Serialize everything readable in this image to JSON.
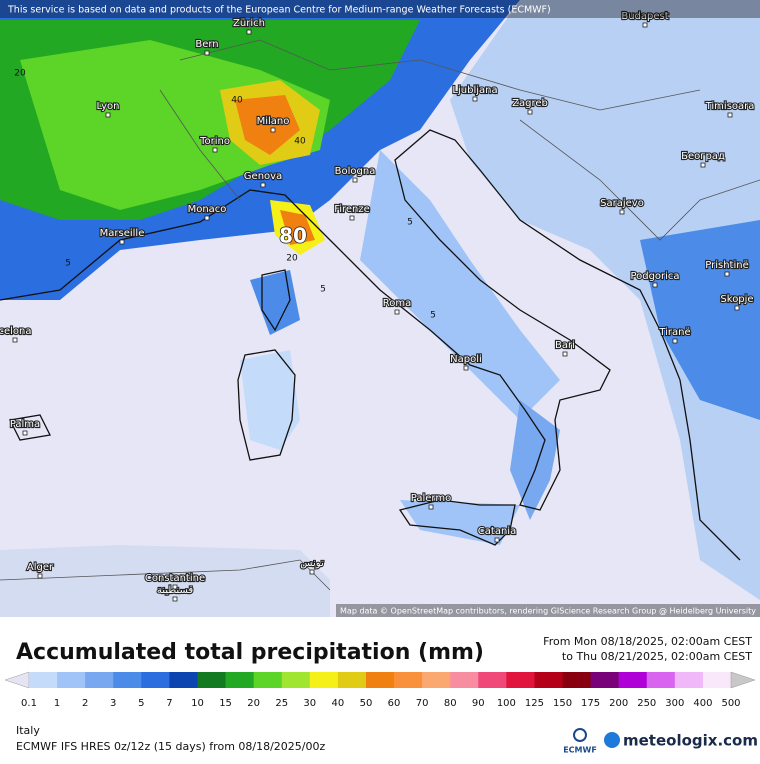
{
  "header": {
    "notice": "This service is based on data and products of the European Centre for Medium-range Weather Forecasts (ECMWF)"
  },
  "map": {
    "cities": [
      "Zürich",
      "Budapest",
      "Bern",
      "Lyon",
      "Milano",
      "Ljubljana",
      "Zagreb",
      "Timisoara",
      "Torino",
      "Београд",
      "Genova",
      "Bologna",
      "Monaco",
      "Sarajevo",
      "Firenze",
      "Marseille",
      "Podgorica",
      "Prishtinë",
      "Roma",
      "Skopje",
      "celona",
      "Tiranë",
      "Bari",
      "Napoli",
      "Palma",
      "Palermo",
      "Catania",
      "Alger",
      "Constantine",
      "قسنطينة",
      "تونس"
    ],
    "contour_labels": [
      "80",
      "20",
      "40",
      "40",
      "20",
      "5",
      "5",
      "5",
      "5"
    ],
    "attribution": "Map data © OpenStreetMap contributors, rendering GIScience Research Group @ Heidelberg University"
  },
  "legend": {
    "title": "Accumulated total precipitation (mm)",
    "period_from": "From Mon 08/18/2025, 02:00am CEST",
    "period_to": "to Thu 08/21/2025, 02:00am CEST",
    "levels": [
      0.1,
      1,
      2,
      3,
      5,
      7,
      10,
      15,
      20,
      25,
      30,
      40,
      50,
      60,
      70,
      80,
      90,
      100,
      125,
      150,
      175,
      200,
      250,
      300,
      400,
      500
    ],
    "colors": [
      "#e4e4f4",
      "#c4dcfa",
      "#a0c4f8",
      "#78a8f0",
      "#4c8ce8",
      "#2a6ee0",
      "#0c44b0",
      "#127a20",
      "#22a822",
      "#5cd428",
      "#a0e630",
      "#f4f018",
      "#e0cc14",
      "#f08010",
      "#f8903c",
      "#fba870",
      "#f88ca0",
      "#f04878",
      "#e0143c",
      "#b40018",
      "#880010",
      "#780078",
      "#b000d8",
      "#d864f0",
      "#f0b8f8",
      "#f8e8fa",
      "#c8c8c8"
    ]
  },
  "footer": {
    "region": "Italy",
    "model": "ECMWF IFS HRES 0z/12z (15 days) from  08/18/2025/00z",
    "logo_ecmwf": "ECMWF",
    "logo_site": "meteologix.com"
  }
}
